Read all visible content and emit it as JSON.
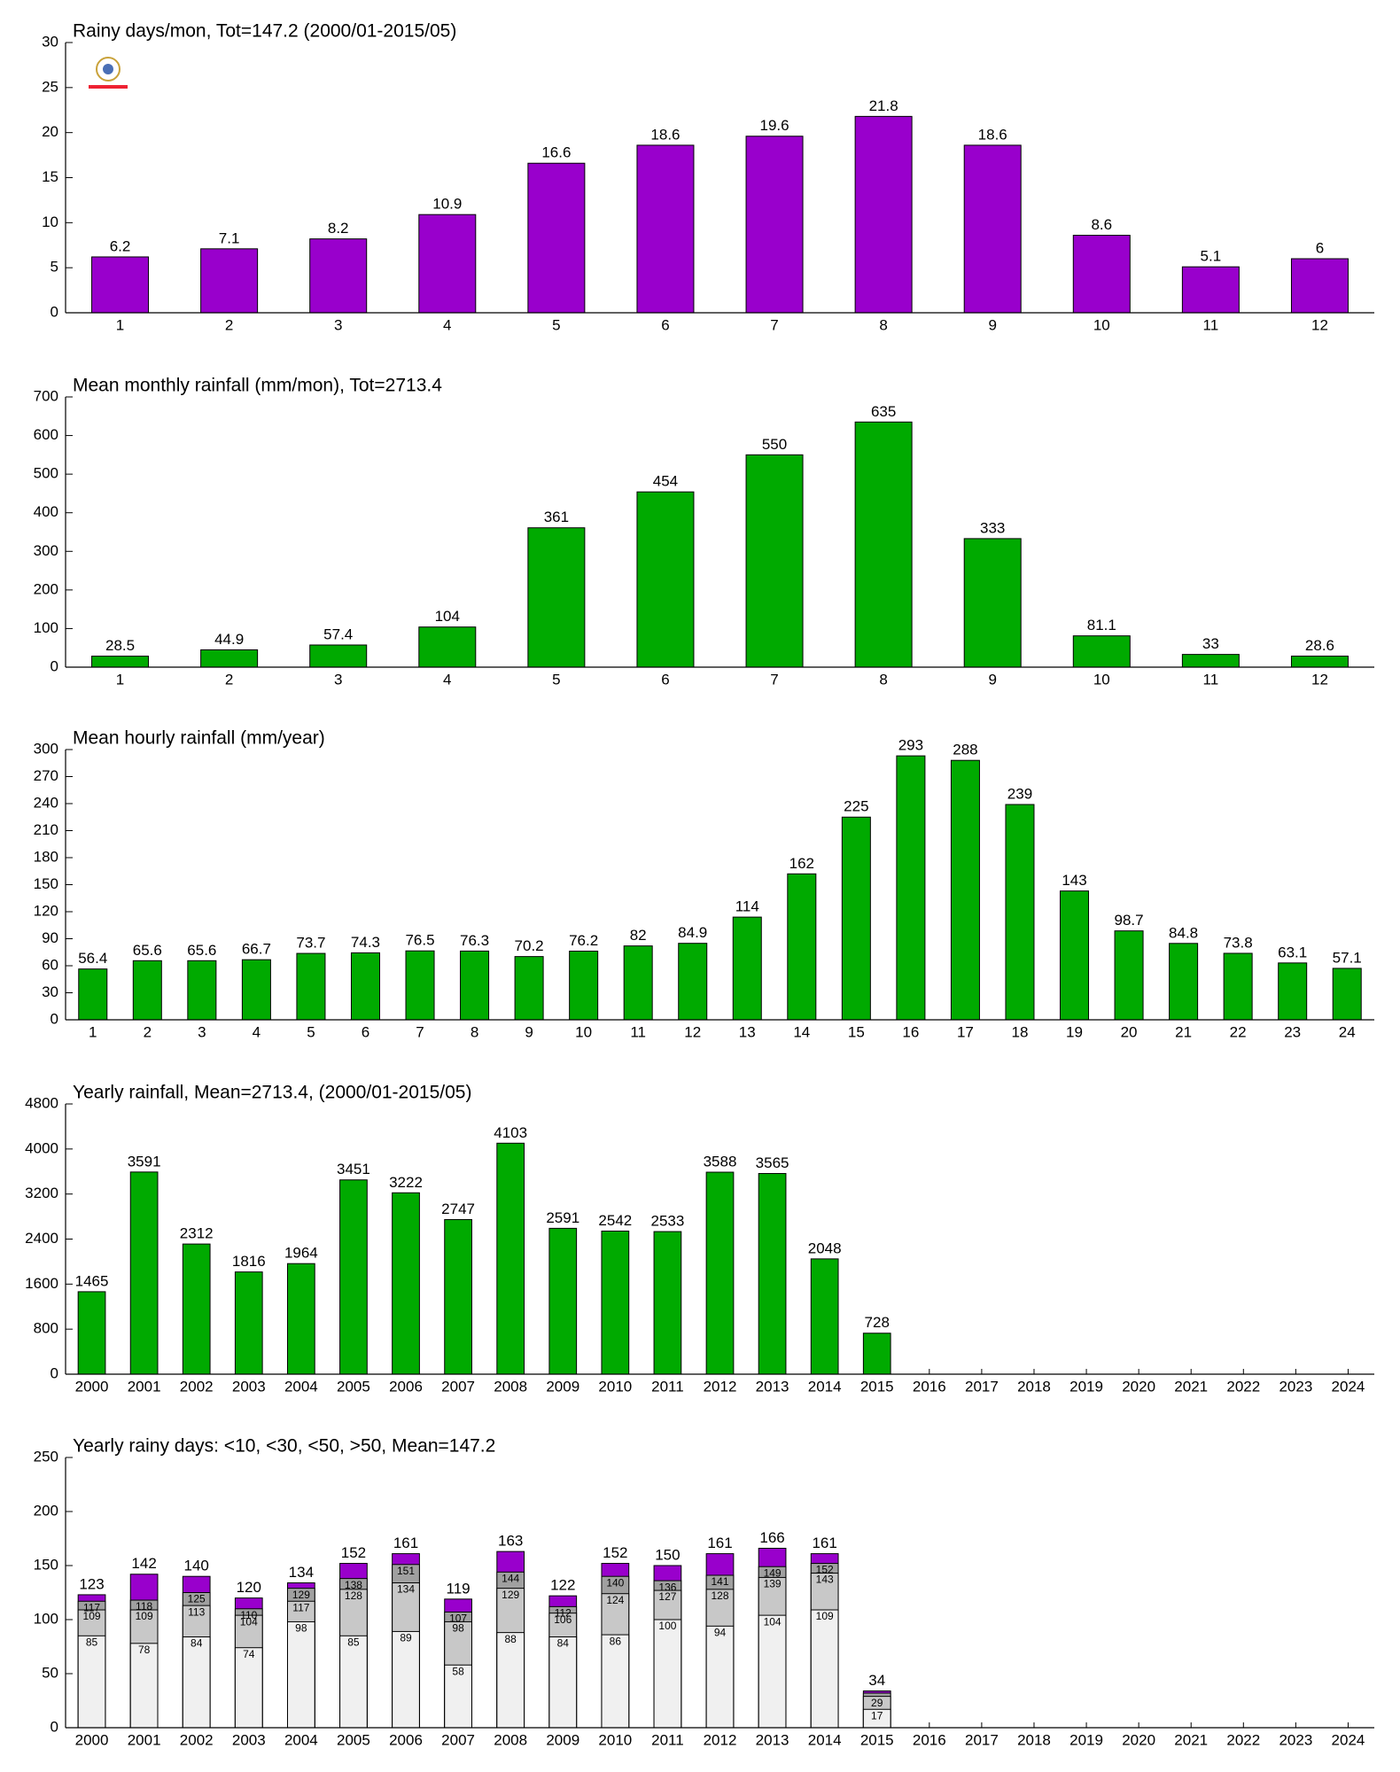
{
  "chart_data": [
    {
      "type": "bar",
      "title": "Rainy days/mon, Tot=147.2 (2000/01-2015/05)",
      "categories": [
        1,
        2,
        3,
        4,
        5,
        6,
        7,
        8,
        9,
        10,
        11,
        12
      ],
      "values": [
        6.2,
        7.1,
        8.2,
        10.9,
        16.6,
        18.6,
        19.6,
        21.8,
        18.6,
        8.6,
        5.1,
        6
      ],
      "color": "#9900cc",
      "ylim": [
        0,
        30
      ],
      "yticks": [
        0,
        5,
        10,
        15,
        20,
        25,
        30
      ],
      "grid": false
    },
    {
      "type": "bar",
      "title": "Mean monthly rainfall (mm/mon), Tot=2713.4",
      "categories": [
        1,
        2,
        3,
        4,
        5,
        6,
        7,
        8,
        9,
        10,
        11,
        12
      ],
      "values": [
        28.5,
        44.9,
        57.4,
        104,
        361,
        454,
        550,
        635,
        333,
        81.1,
        33,
        28.6
      ],
      "color": "#00aa00",
      "ylim": [
        0,
        700
      ],
      "yticks": [
        0,
        100,
        200,
        300,
        400,
        500,
        600,
        700
      ],
      "grid": false
    },
    {
      "type": "bar",
      "title": "Mean hourly rainfall (mm/year)",
      "categories": [
        1,
        2,
        3,
        4,
        5,
        6,
        7,
        8,
        9,
        10,
        11,
        12,
        13,
        14,
        15,
        16,
        17,
        18,
        19,
        20,
        21,
        22,
        23,
        24
      ],
      "values": [
        56.4,
        65.6,
        65.6,
        66.7,
        73.7,
        74.3,
        76.5,
        76.3,
        70.2,
        76.2,
        82,
        84.9,
        114,
        162,
        225,
        293,
        288,
        239,
        143,
        98.7,
        84.8,
        73.8,
        63.1,
        57.1
      ],
      "color": "#00aa00",
      "ylim": [
        0,
        300
      ],
      "yticks": [
        0,
        30,
        60,
        90,
        120,
        150,
        180,
        210,
        240,
        270,
        300
      ],
      "grid": false
    },
    {
      "type": "bar",
      "title": "Yearly rainfall, Mean=2713.4, (2000/01-2015/05)",
      "categories": [
        2000,
        2001,
        2002,
        2003,
        2004,
        2005,
        2006,
        2007,
        2008,
        2009,
        2010,
        2011,
        2012,
        2013,
        2014,
        2015,
        2016,
        2017,
        2018,
        2019,
        2020,
        2021,
        2022,
        2023,
        2024
      ],
      "values": [
        1465,
        3591,
        2312,
        1816,
        1964,
        3451,
        3222,
        2747,
        4103,
        2591,
        2542,
        2533,
        3588,
        3565,
        2048,
        728,
        null,
        null,
        null,
        null,
        null,
        null,
        null,
        null,
        null
      ],
      "color": "#00aa00",
      "ylim": [
        0,
        4800
      ],
      "yticks": [
        0,
        800,
        1600,
        2400,
        3200,
        4000,
        4800
      ],
      "grid": false
    },
    {
      "type": "bar",
      "title": "Yearly rainy days: <10, <30, <50, >50, Mean=147.2",
      "categories": [
        2000,
        2001,
        2002,
        2003,
        2004,
        2005,
        2006,
        2007,
        2008,
        2009,
        2010,
        2011,
        2012,
        2013,
        2014,
        2015,
        2016,
        2017,
        2018,
        2019,
        2020,
        2021,
        2022,
        2023,
        2024
      ],
      "series": [
        {
          "color": "#f0f0f0",
          "values": [
            85,
            78,
            84,
            74,
            98,
            85,
            89,
            58,
            88,
            84,
            86,
            100,
            94,
            104,
            109,
            17,
            null,
            null,
            null,
            null,
            null,
            null,
            null,
            null,
            null
          ]
        },
        {
          "color": "#c8c8c8",
          "values": [
            109,
            109,
            113,
            104,
            117,
            128,
            134,
            98,
            129,
            106,
            124,
            127,
            128,
            139,
            143,
            29,
            null,
            null,
            null,
            null,
            null,
            null,
            null,
            null,
            null
          ]
        },
        {
          "color": "#a0a0a0",
          "values": [
            117,
            118,
            125,
            110,
            129,
            138,
            151,
            107,
            144,
            112,
            140,
            136,
            141,
            149,
            152,
            32,
            null,
            null,
            null,
            null,
            null,
            null,
            null,
            null,
            null
          ],
          "value_labels": [
            "117",
            "118",
            "125",
            "110",
            "129",
            "138",
            "151",
            "107",
            "144",
            "112",
            "140",
            "136",
            "141",
            "149",
            "152",
            null,
            null,
            null,
            null,
            null,
            null,
            null,
            null,
            null,
            null
          ]
        },
        {
          "color": "#9900cc",
          "values": [
            123,
            142,
            140,
            120,
            134,
            152,
            161,
            119,
            163,
            122,
            152,
            150,
            161,
            166,
            161,
            34,
            null,
            null,
            null,
            null,
            null,
            null,
            null,
            null,
            null
          ]
        }
      ],
      "ylim": [
        0,
        250
      ],
      "yticks": [
        0,
        50,
        100,
        150,
        200,
        250
      ],
      "grid": false
    }
  ]
}
